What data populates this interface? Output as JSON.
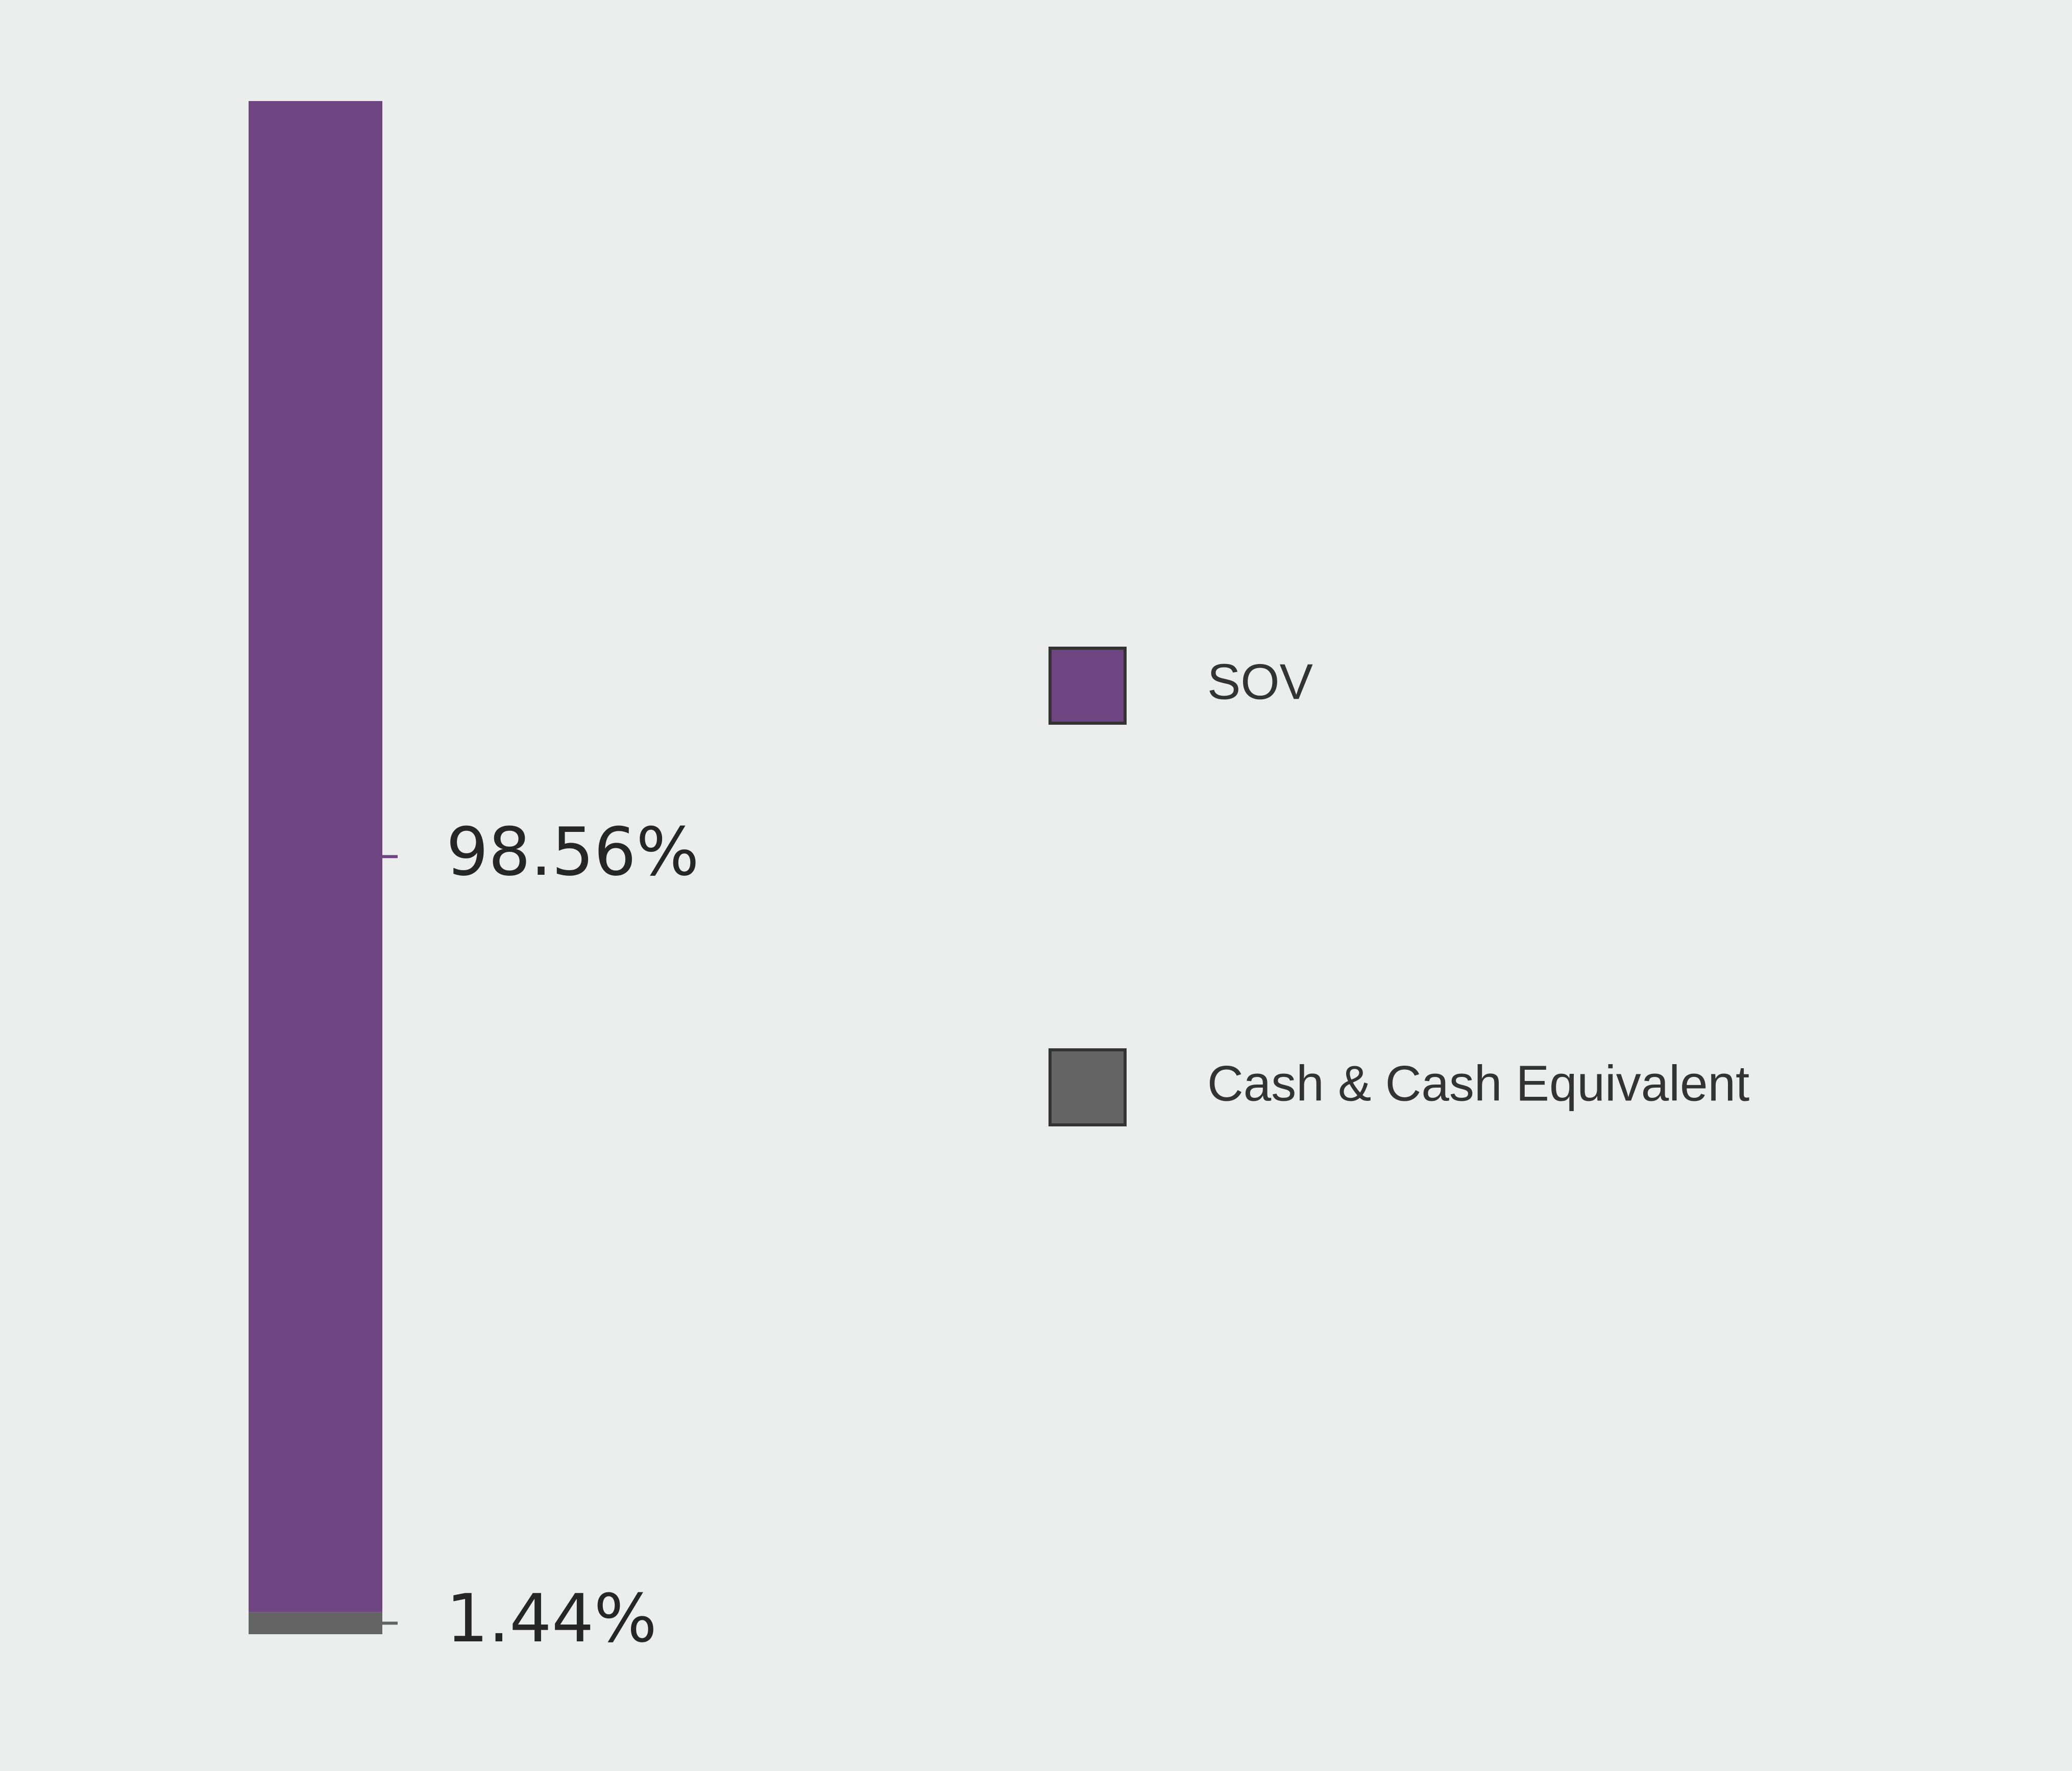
{
  "chart_data": {
    "type": "bar",
    "stacked": true,
    "orientation": "vertical",
    "ylim": [
      0,
      100
    ],
    "series": [
      {
        "name": "SOV",
        "value": 98.56,
        "label": "98.56%",
        "color": "#6f4581"
      },
      {
        "name": "Cash & Cash Equivalent",
        "value": 1.44,
        "label": "1.44%",
        "color": "#646464"
      }
    ],
    "legend": {
      "placement": "right",
      "entries": [
        "SOV",
        "Cash & Cash Equivalent"
      ]
    },
    "grid": false
  },
  "colors": {
    "background": "#eceeed",
    "text": "#262626",
    "legend_text": "#333333",
    "legend_border": "#333333"
  }
}
